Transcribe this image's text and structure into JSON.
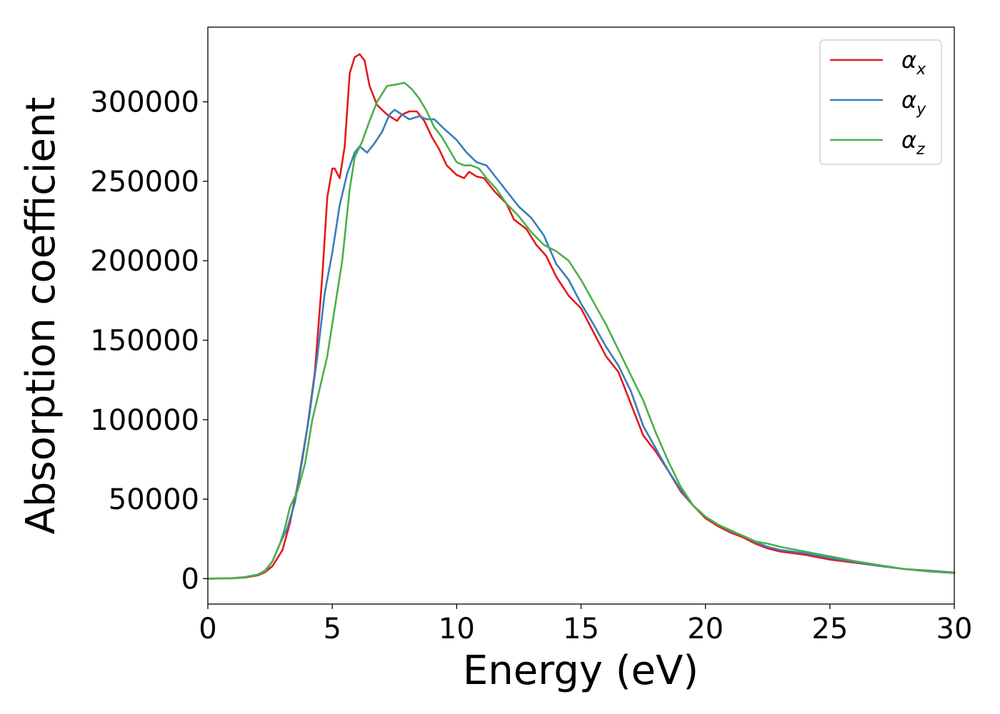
{
  "chart_data": {
    "type": "line",
    "xlabel": "Energy (eV)",
    "ylabel": "Absorption coefficient",
    "xlim": [
      0,
      30
    ],
    "ylim": [
      -16000,
      347000
    ],
    "xticks": [
      0,
      5,
      10,
      15,
      20,
      25,
      30
    ],
    "xtick_labels": [
      "0",
      "5",
      "10",
      "15",
      "20",
      "25",
      "30"
    ],
    "yticks": [
      0,
      50000,
      100000,
      150000,
      200000,
      250000,
      300000
    ],
    "ytick_labels": [
      "0",
      "50000",
      "100000",
      "150000",
      "200000",
      "250000",
      "300000"
    ],
    "grid": false,
    "legend_position": "top-right",
    "series": [
      {
        "name": "α",
        "subscript": "x",
        "color": "#e41a1c",
        "points": [
          [
            0,
            0
          ],
          [
            1,
            200
          ],
          [
            1.5,
            700
          ],
          [
            2,
            2000
          ],
          [
            2.3,
            4000
          ],
          [
            2.6,
            8000
          ],
          [
            3,
            18000
          ],
          [
            3.3,
            35000
          ],
          [
            3.6,
            58000
          ],
          [
            4,
            95000
          ],
          [
            4.3,
            130000
          ],
          [
            4.6,
            190000
          ],
          [
            4.8,
            240000
          ],
          [
            5,
            258000
          ],
          [
            5.1,
            258000
          ],
          [
            5.3,
            252000
          ],
          [
            5.5,
            272000
          ],
          [
            5.7,
            318000
          ],
          [
            5.9,
            328000
          ],
          [
            6.1,
            330000
          ],
          [
            6.3,
            326000
          ],
          [
            6.5,
            310000
          ],
          [
            6.8,
            298000
          ],
          [
            7.2,
            292000
          ],
          [
            7.6,
            288000
          ],
          [
            7.8,
            292000
          ],
          [
            8.1,
            294000
          ],
          [
            8.4,
            294000
          ],
          [
            8.7,
            288000
          ],
          [
            9,
            278000
          ],
          [
            9.3,
            270000
          ],
          [
            9.6,
            260000
          ],
          [
            10,
            254000
          ],
          [
            10.3,
            252000
          ],
          [
            10.5,
            256000
          ],
          [
            10.8,
            253000
          ],
          [
            11.1,
            252000
          ],
          [
            11.5,
            244000
          ],
          [
            12,
            236000
          ],
          [
            12.3,
            226000
          ],
          [
            12.8,
            220000
          ],
          [
            13.2,
            210000
          ],
          [
            13.6,
            203000
          ],
          [
            14,
            190000
          ],
          [
            14.5,
            178000
          ],
          [
            15,
            170000
          ],
          [
            15.5,
            155000
          ],
          [
            16,
            140000
          ],
          [
            16.5,
            130000
          ],
          [
            17,
            110000
          ],
          [
            17.5,
            90000
          ],
          [
            18,
            80000
          ],
          [
            18.5,
            68000
          ],
          [
            19,
            55000
          ],
          [
            19.5,
            46000
          ],
          [
            20,
            38000
          ],
          [
            20.5,
            33000
          ],
          [
            21,
            29000
          ],
          [
            21.5,
            26000
          ],
          [
            22,
            22000
          ],
          [
            22.5,
            19000
          ],
          [
            23,
            17000
          ],
          [
            24,
            15000
          ],
          [
            25,
            12000
          ],
          [
            26,
            10000
          ],
          [
            27,
            8000
          ],
          [
            28,
            6000
          ],
          [
            29,
            5000
          ],
          [
            30,
            3800
          ]
        ]
      },
      {
        "name": "α",
        "subscript": "y",
        "color": "#377eb8",
        "points": [
          [
            0,
            0
          ],
          [
            1,
            300
          ],
          [
            1.5,
            1000
          ],
          [
            2,
            2500
          ],
          [
            2.3,
            5000
          ],
          [
            2.6,
            11000
          ],
          [
            2.9,
            22000
          ],
          [
            3.2,
            32000
          ],
          [
            3.5,
            48000
          ],
          [
            3.8,
            75000
          ],
          [
            4.1,
            105000
          ],
          [
            4.4,
            140000
          ],
          [
            4.7,
            180000
          ],
          [
            5,
            205000
          ],
          [
            5.3,
            235000
          ],
          [
            5.6,
            255000
          ],
          [
            5.9,
            268000
          ],
          [
            6.1,
            272000
          ],
          [
            6.4,
            268000
          ],
          [
            6.7,
            274000
          ],
          [
            7,
            281000
          ],
          [
            7.3,
            292000
          ],
          [
            7.5,
            295000
          ],
          [
            7.8,
            292000
          ],
          [
            8.1,
            289000
          ],
          [
            8.5,
            291000
          ],
          [
            8.8,
            289000
          ],
          [
            9.1,
            289000
          ],
          [
            9.5,
            283000
          ],
          [
            10,
            276000
          ],
          [
            10.4,
            268000
          ],
          [
            10.8,
            262000
          ],
          [
            11.2,
            260000
          ],
          [
            11.6,
            252000
          ],
          [
            12,
            244000
          ],
          [
            12.5,
            234000
          ],
          [
            13,
            227000
          ],
          [
            13.5,
            216000
          ],
          [
            14,
            198000
          ],
          [
            14.5,
            188000
          ],
          [
            15,
            173000
          ],
          [
            15.5,
            160000
          ],
          [
            16,
            146000
          ],
          [
            16.5,
            134000
          ],
          [
            17,
            118000
          ],
          [
            17.5,
            96000
          ],
          [
            18,
            82000
          ],
          [
            18.5,
            68000
          ],
          [
            19,
            56000
          ],
          [
            19.5,
            46000
          ],
          [
            20,
            39000
          ],
          [
            20.5,
            34000
          ],
          [
            21,
            30000
          ],
          [
            21.5,
            27000
          ],
          [
            22,
            23000
          ],
          [
            22.5,
            20000
          ],
          [
            23,
            18000
          ],
          [
            24,
            16000
          ],
          [
            25,
            13000
          ],
          [
            26,
            10500
          ],
          [
            27,
            8000
          ],
          [
            28,
            6000
          ],
          [
            29,
            4800
          ],
          [
            30,
            3800
          ]
        ]
      },
      {
        "name": "α",
        "subscript": "z",
        "color": "#4daf4a",
        "points": [
          [
            0,
            0
          ],
          [
            1,
            300
          ],
          [
            1.5,
            900
          ],
          [
            2,
            2500
          ],
          [
            2.3,
            4500
          ],
          [
            2.6,
            11000
          ],
          [
            2.9,
            22000
          ],
          [
            3.1,
            32000
          ],
          [
            3.3,
            45000
          ],
          [
            3.6,
            55000
          ],
          [
            3.9,
            72000
          ],
          [
            4.2,
            100000
          ],
          [
            4.5,
            120000
          ],
          [
            4.8,
            140000
          ],
          [
            5.1,
            170000
          ],
          [
            5.4,
            200000
          ],
          [
            5.7,
            245000
          ],
          [
            5.9,
            265000
          ],
          [
            6.2,
            275000
          ],
          [
            6.5,
            288000
          ],
          [
            6.8,
            300000
          ],
          [
            7.2,
            310000
          ],
          [
            7.6,
            311000
          ],
          [
            7.9,
            312000
          ],
          [
            8.2,
            308000
          ],
          [
            8.5,
            302000
          ],
          [
            8.8,
            294000
          ],
          [
            9.1,
            284000
          ],
          [
            9.4,
            278000
          ],
          [
            9.7,
            270000
          ],
          [
            10,
            262000
          ],
          [
            10.3,
            260000
          ],
          [
            10.6,
            260000
          ],
          [
            10.9,
            258000
          ],
          [
            11.2,
            252000
          ],
          [
            11.6,
            245000
          ],
          [
            12,
            236000
          ],
          [
            12.5,
            228000
          ],
          [
            13,
            218000
          ],
          [
            13.5,
            210000
          ],
          [
            14,
            206000
          ],
          [
            14.5,
            200000
          ],
          [
            15,
            188000
          ],
          [
            15.5,
            174000
          ],
          [
            16,
            160000
          ],
          [
            16.5,
            144000
          ],
          [
            17,
            128000
          ],
          [
            17.5,
            112000
          ],
          [
            18,
            92000
          ],
          [
            18.5,
            74000
          ],
          [
            19,
            58000
          ],
          [
            19.5,
            46000
          ],
          [
            20,
            39000
          ],
          [
            20.5,
            34000
          ],
          [
            21,
            30500
          ],
          [
            21.5,
            27000
          ],
          [
            22,
            23500
          ],
          [
            22.5,
            22000
          ],
          [
            23,
            20000
          ],
          [
            24,
            17000
          ],
          [
            25,
            14000
          ],
          [
            26,
            11000
          ],
          [
            27,
            8500
          ],
          [
            28,
            6000
          ],
          [
            29,
            4500
          ],
          [
            30,
            3500
          ]
        ]
      }
    ]
  }
}
